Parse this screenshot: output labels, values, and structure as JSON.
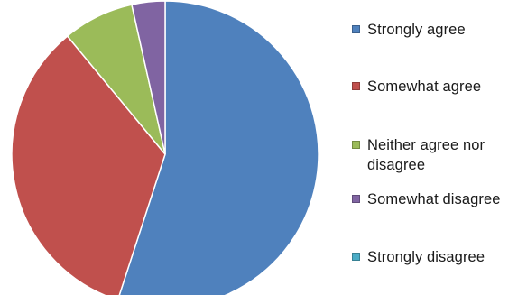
{
  "chart_data": {
    "type": "pie",
    "title": "",
    "categories": [
      "Strongly agree",
      "Somewhat agree",
      "Neither agree nor disagree",
      "Somewhat disagree",
      "Strongly disagree"
    ],
    "values": [
      55,
      34,
      7.5,
      3.5,
      0
    ],
    "colors": [
      "#4F81BD",
      "#C0504D",
      "#9BBB59",
      "#8064A2",
      "#4BACC6"
    ],
    "legend_position": "right",
    "legend": [
      {
        "label": "Strongly agree",
        "color": "#4F81BD"
      },
      {
        "label": "Somewhat agree",
        "color": "#C0504D"
      },
      {
        "label": "Neither agree nor disagree",
        "color": "#9BBB59"
      },
      {
        "label": "Somewhat disagree",
        "color": "#8064A2"
      },
      {
        "label": "Strongly disagree",
        "color": "#4BACC6"
      }
    ]
  }
}
